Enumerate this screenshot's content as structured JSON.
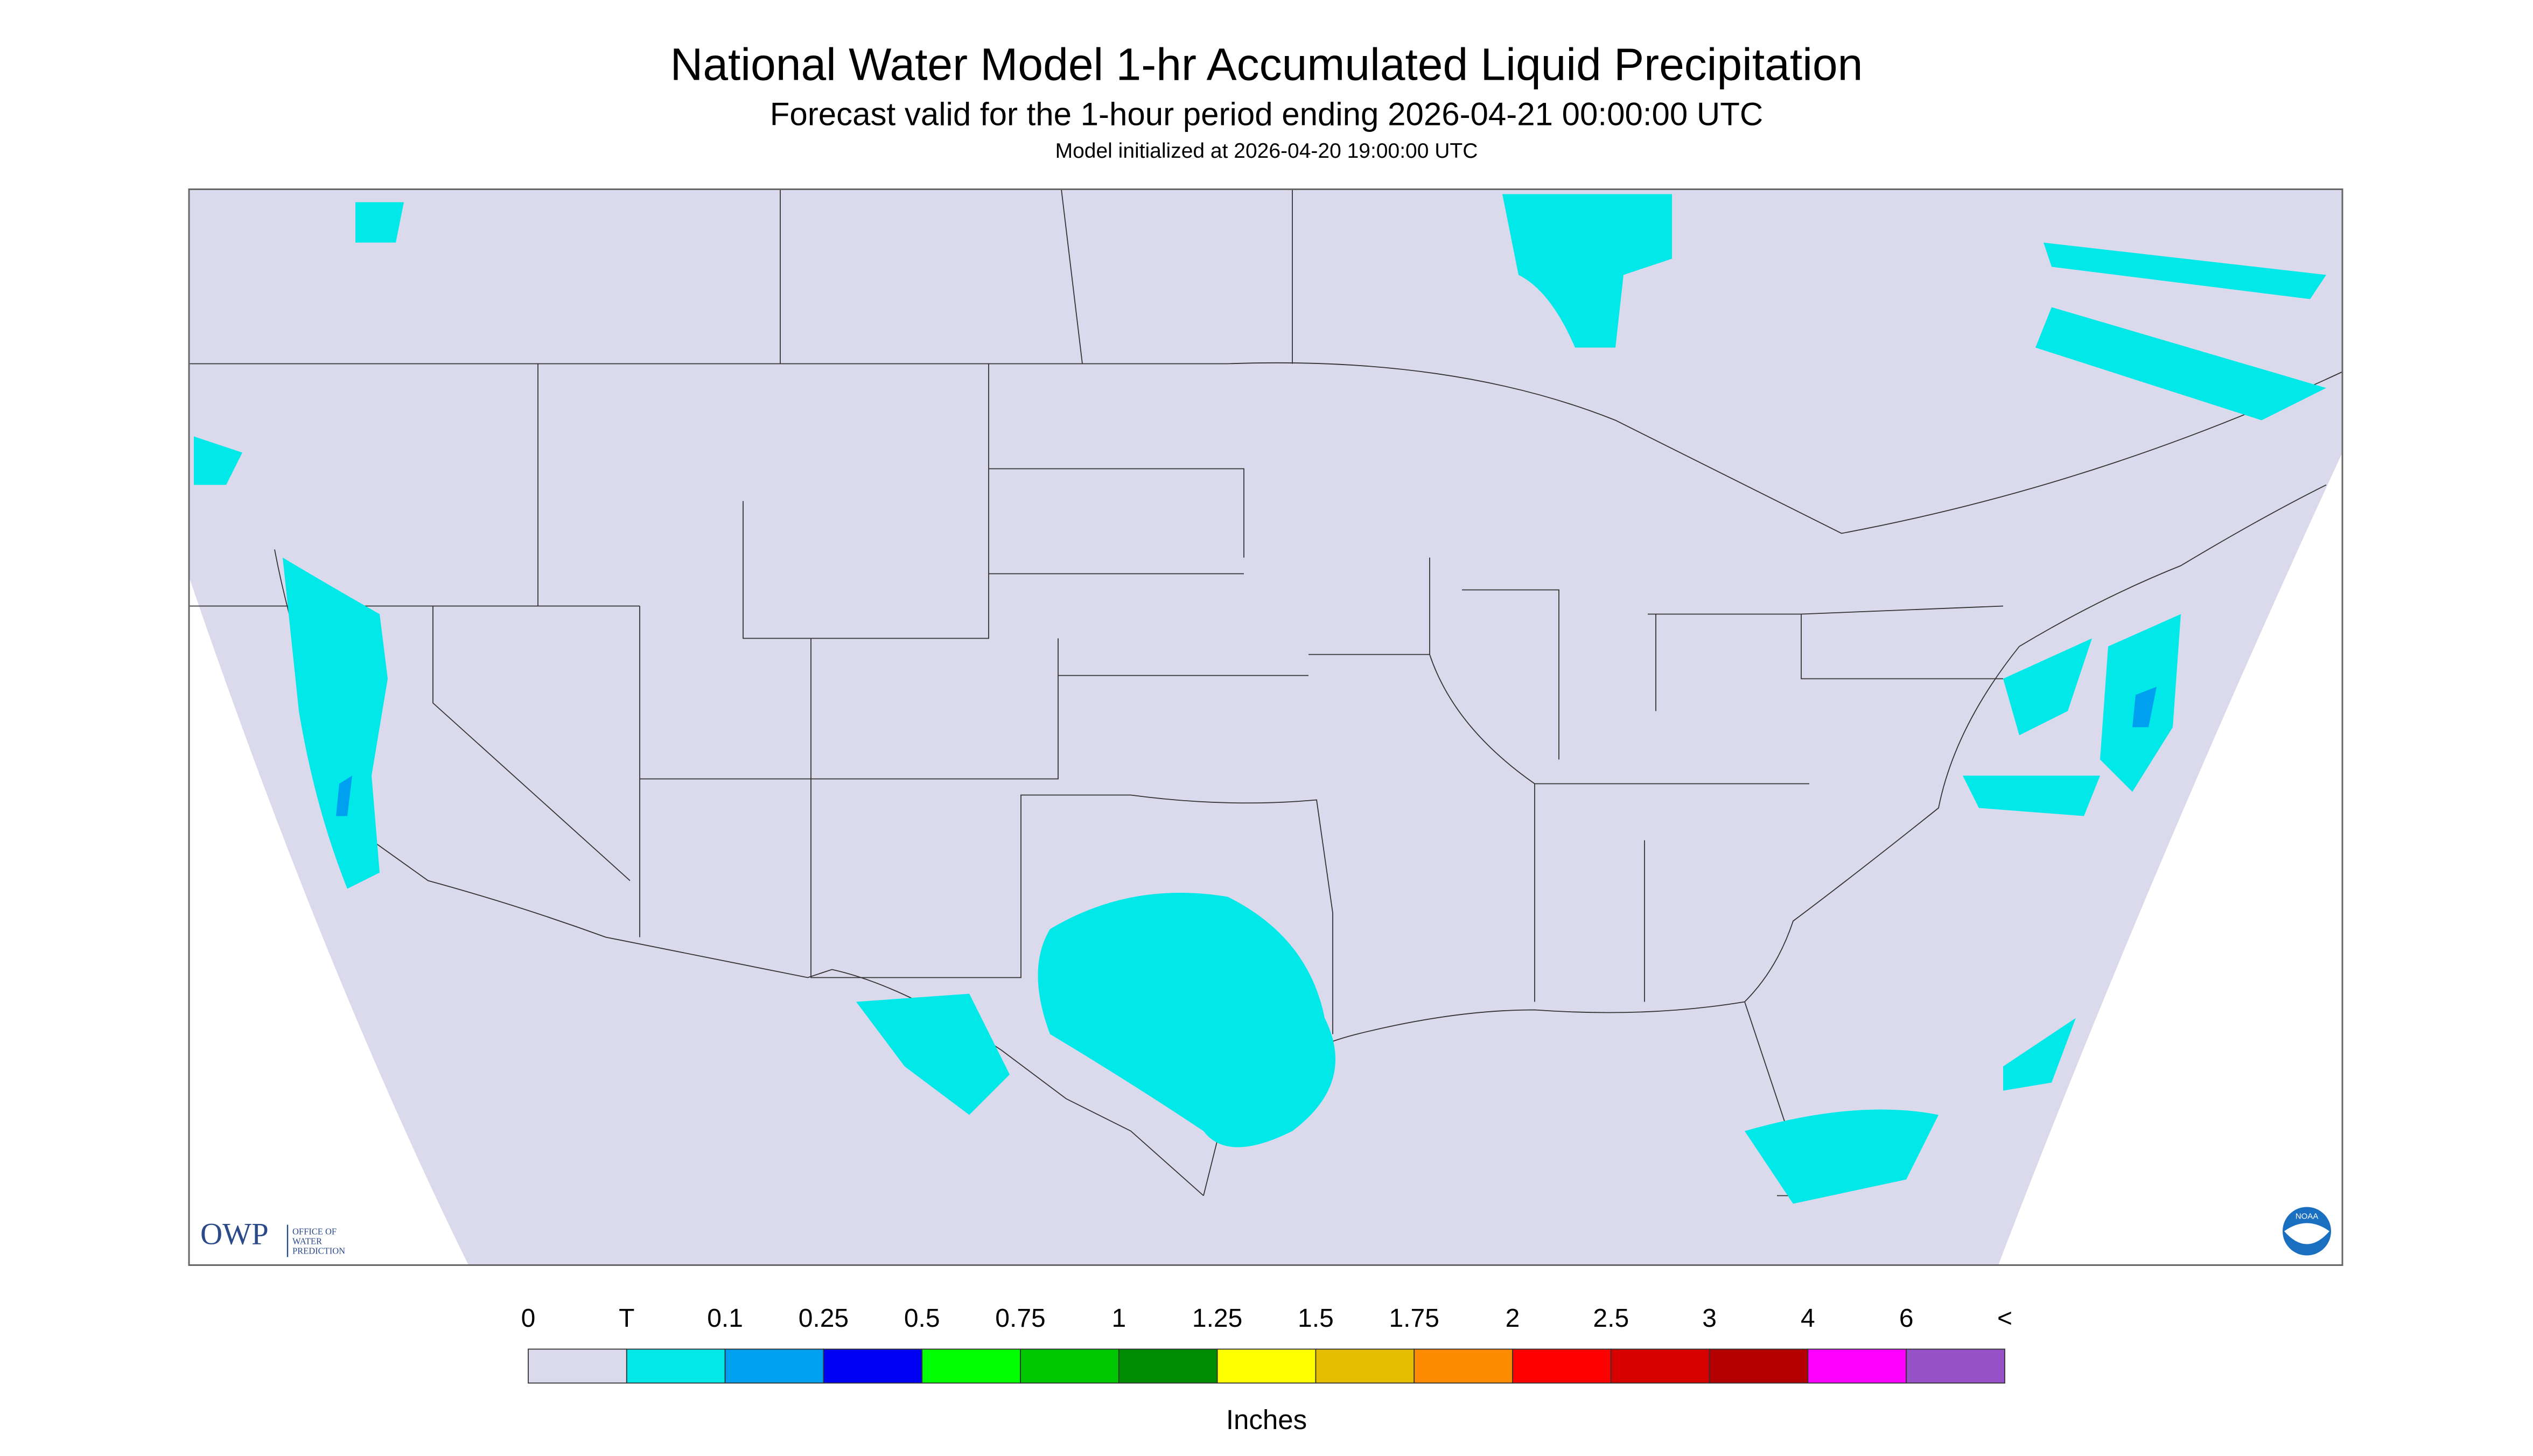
{
  "header": {
    "title": "National Water Model 1-hr Accumulated Liquid Precipitation",
    "subtitle": "Forecast valid for the 1-hour period ending 2026-04-21 00:00:00 UTC",
    "initialized": "Model initialized at 2026-04-20 19:00:00 UTC"
  },
  "legend": {
    "labels": [
      "0",
      "T",
      "0.1",
      "0.25",
      "0.5",
      "0.75",
      "1",
      "1.25",
      "1.5",
      "1.75",
      "2",
      "2.5",
      "3",
      "4",
      "6",
      "<"
    ],
    "colors": [
      "#dadaec",
      "#00e8e8",
      "#00a0f0",
      "#0000f5",
      "#00ff00",
      "#00c800",
      "#008c00",
      "#ffff00",
      "#e6be00",
      "#ff8c00",
      "#ff0000",
      "#d70000",
      "#b40000",
      "#ff00ff",
      "#9650c8"
    ],
    "unit": "Inches"
  },
  "logos": {
    "owp": "OWP",
    "owp_text": [
      "OFFICE OF",
      "WATER",
      "PREDICTION"
    ],
    "noaa": "NOAA"
  }
}
